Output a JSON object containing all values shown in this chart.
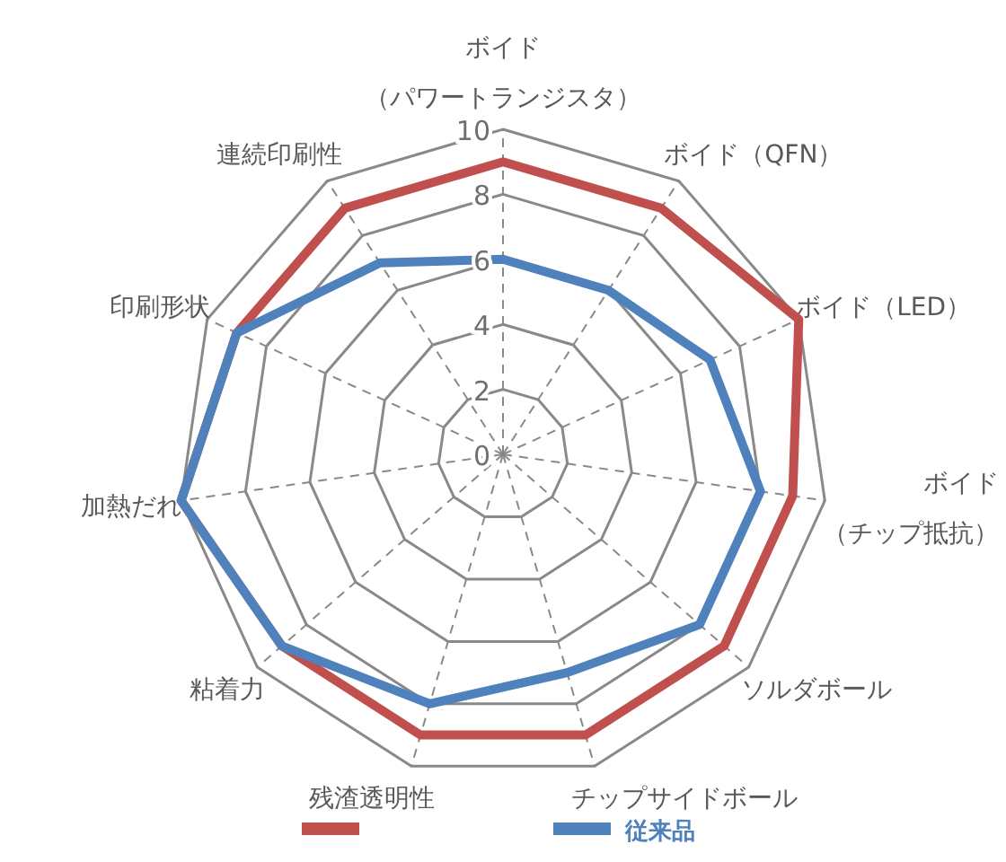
{
  "chart_data": {
    "type": "radar",
    "categories": [
      "ボイド（パワートランジスタ）",
      "ボイド（QFN）",
      "ボイド（LED）",
      "ボイド（チップ抵抗）",
      "ソルダボール",
      "チップサイドボール",
      "残渣透明性",
      "粘着力",
      "加熱だれ",
      "印刷形状",
      "連続印刷性"
    ],
    "series": [
      {
        "color": "#c0504d",
        "values": [
          9,
          9,
          10,
          9,
          9,
          9,
          9,
          9,
          10,
          9,
          9
        ]
      },
      {
        "name": "従来品",
        "color": "#4f81bd",
        "values": [
          6,
          6,
          7,
          8,
          8,
          7,
          8,
          9,
          10,
          9,
          7
        ]
      }
    ],
    "ylim": [
      0,
      10
    ],
    "yticks": [
      0,
      2,
      4,
      6,
      8,
      10
    ],
    "grid": true,
    "legend": "bottom",
    "marker": "none",
    "line_style": "solid"
  }
}
